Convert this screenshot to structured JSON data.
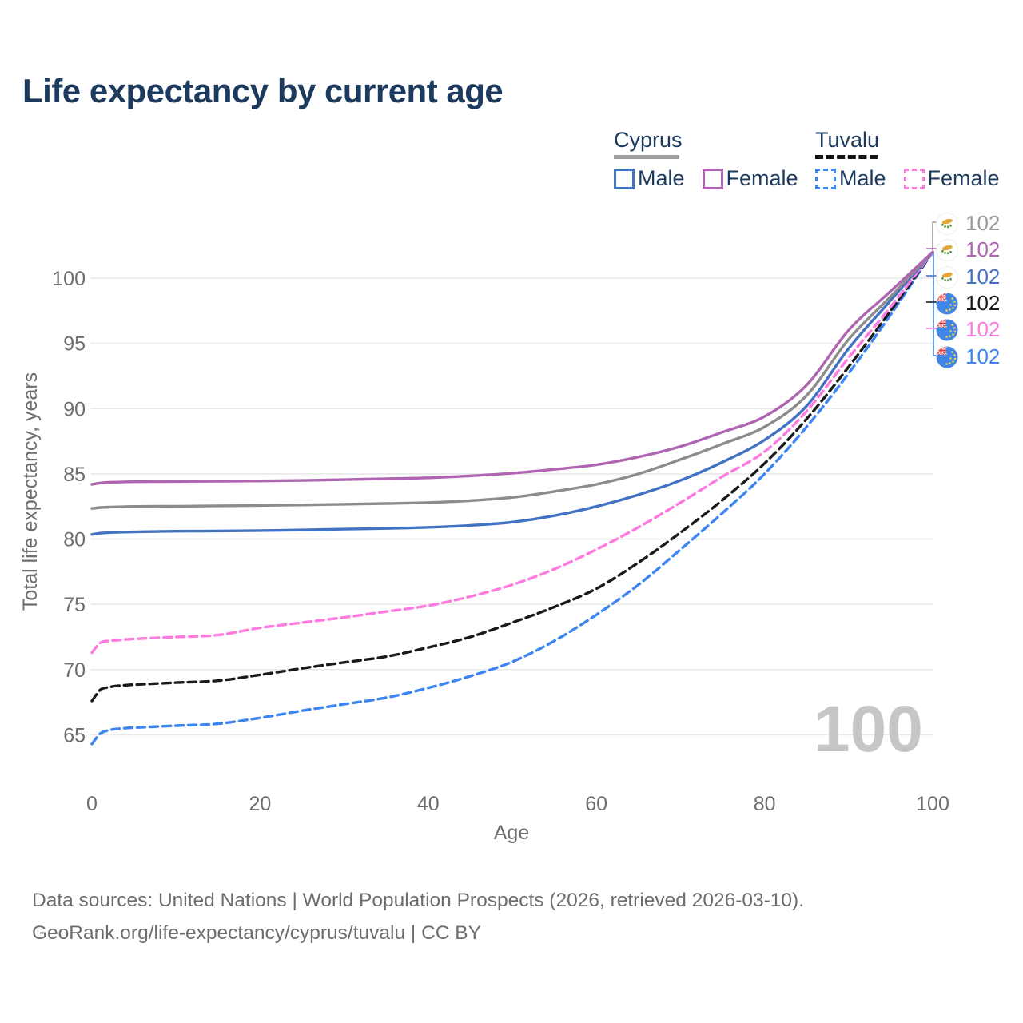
{
  "header": {
    "title": "Life expectancy by current age"
  },
  "legend": {
    "groups": [
      {
        "title": "Cyprus",
        "line_style": "solid",
        "items": [
          {
            "label": "Male",
            "color": "#4272c4"
          },
          {
            "label": "Female",
            "color": "#b065b2"
          }
        ]
      },
      {
        "title": "Tuvalu",
        "line_style": "dashed",
        "items": [
          {
            "label": "Male",
            "color": "#3d85f2"
          },
          {
            "label": "Female",
            "color": "#ff7ae0"
          }
        ]
      }
    ]
  },
  "chart_data": {
    "type": "line",
    "title": "Life expectancy by current age",
    "xlabel": "Age",
    "ylabel": "Total life expectancy, years",
    "xlim": [
      0,
      100
    ],
    "ylim": [
      63,
      103
    ],
    "xticks": [
      0,
      20,
      40,
      60,
      80,
      100
    ],
    "yticks": [
      65,
      70,
      75,
      80,
      85,
      90,
      95,
      100
    ],
    "grid": "horizontal-only",
    "legend_position": "top-right",
    "x": [
      0,
      1,
      2,
      3,
      5,
      10,
      15,
      20,
      25,
      30,
      35,
      40,
      45,
      50,
      55,
      60,
      65,
      70,
      75,
      80,
      85,
      90,
      95,
      100
    ],
    "series": [
      {
        "name": "Tuvalu Male",
        "country": "Tuvalu",
        "sex": "Male",
        "color": "#3d85f2",
        "dashed": true,
        "values": [
          64.3,
          65.1,
          65.35,
          65.45,
          65.55,
          65.7,
          65.85,
          66.3,
          66.85,
          67.35,
          67.85,
          68.6,
          69.5,
          70.6,
          72.2,
          74.2,
          76.5,
          79.2,
          82.0,
          85.0,
          88.6,
          92.7,
          97.2,
          102
        ]
      },
      {
        "name": "Tuvalu Both sexes",
        "country": "Tuvalu",
        "sex": "Both",
        "color": "#1a1a1a",
        "dashed": true,
        "values": [
          67.6,
          68.45,
          68.65,
          68.75,
          68.85,
          69.0,
          69.15,
          69.6,
          70.1,
          70.55,
          71.0,
          71.7,
          72.5,
          73.6,
          74.8,
          76.2,
          78.2,
          80.5,
          83.0,
          85.8,
          89.2,
          93.2,
          97.5,
          102
        ]
      },
      {
        "name": "Tuvalu Female",
        "country": "Tuvalu",
        "sex": "Female",
        "color": "#ff7ae0",
        "dashed": true,
        "values": [
          71.3,
          72.05,
          72.2,
          72.25,
          72.35,
          72.5,
          72.65,
          73.2,
          73.6,
          74.0,
          74.45,
          74.9,
          75.6,
          76.5,
          77.7,
          79.2,
          80.9,
          82.8,
          84.8,
          86.7,
          89.8,
          93.9,
          97.8,
          102
        ]
      },
      {
        "name": "Cyprus Male",
        "country": "Cyprus",
        "sex": "Male",
        "color": "#4272c4",
        "dashed": false,
        "values": [
          80.35,
          80.45,
          80.5,
          80.52,
          80.55,
          80.6,
          80.62,
          80.65,
          80.7,
          80.76,
          80.82,
          80.9,
          81.05,
          81.3,
          81.8,
          82.5,
          83.4,
          84.5,
          85.9,
          87.6,
          90.2,
          94.6,
          98.3,
          102
        ]
      },
      {
        "name": "Cyprus Both sexes",
        "country": "Cyprus",
        "sex": "Both",
        "color": "#8c8c8c",
        "dashed": false,
        "values": [
          82.35,
          82.42,
          82.45,
          82.47,
          82.5,
          82.52,
          82.55,
          82.58,
          82.62,
          82.67,
          82.73,
          82.8,
          82.95,
          83.2,
          83.65,
          84.2,
          85.0,
          86.1,
          87.3,
          88.6,
          91.0,
          95.3,
          98.6,
          102
        ]
      },
      {
        "name": "Cyprus Female",
        "country": "Cyprus",
        "sex": "Female",
        "color": "#b065b2",
        "dashed": false,
        "values": [
          84.2,
          84.3,
          84.35,
          84.37,
          84.4,
          84.42,
          84.44,
          84.46,
          84.5,
          84.56,
          84.63,
          84.7,
          84.85,
          85.05,
          85.35,
          85.7,
          86.3,
          87.1,
          88.2,
          89.4,
          91.8,
          96.0,
          99.0,
          102
        ]
      }
    ],
    "end_labels": [
      {
        "series": "Cyprus Both sexes",
        "flag": "cyprus",
        "color": "#9a9a9a",
        "value": "102"
      },
      {
        "series": "Cyprus Female",
        "flag": "cyprus",
        "color": "#b065b2",
        "value": "102"
      },
      {
        "series": "Cyprus Male",
        "flag": "cyprus",
        "color": "#4272c4",
        "value": "102"
      },
      {
        "series": "Tuvalu Both sexes",
        "flag": "tuvalu",
        "color": "#1a1a1a",
        "value": "102"
      },
      {
        "series": "Tuvalu Female",
        "flag": "tuvalu",
        "color": "#ff7ae0",
        "value": "102"
      },
      {
        "series": "Tuvalu Male",
        "flag": "tuvalu",
        "color": "#3d85f2",
        "value": "102"
      }
    ],
    "watermark": "100"
  },
  "footer": {
    "line1": "Data sources: United Nations | World Population Prospects (2026, retrieved 2026-03-10).",
    "line2": "GeoRank.org/life-expectancy/cyprus/tuvalu | CC BY"
  }
}
